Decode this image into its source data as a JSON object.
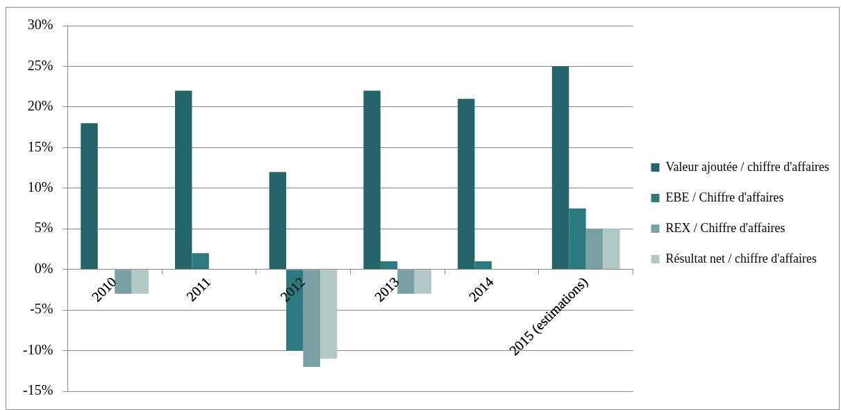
{
  "chart_data": {
    "type": "bar",
    "categories": [
      "2010",
      "2011",
      "2012",
      "2013",
      "2014",
      "2015 (estimations)"
    ],
    "series": [
      {
        "name": "Valeur ajoutée / chiffre d'affaires",
        "color": "#256468",
        "values": [
          18,
          22,
          12,
          22,
          21,
          25
        ]
      },
      {
        "name": "EBE / Chiffre d'affaires",
        "color": "#2c7a80",
        "values": [
          0,
          2,
          -10,
          1,
          1,
          7.5
        ]
      },
      {
        "name": "REX / Chiffre d'affaires",
        "color": "#79a1a3",
        "values": [
          -3,
          0,
          -12,
          -3,
          0,
          5
        ]
      },
      {
        "name": "Résultat net / chiffre d'affaires",
        "color": "#b1c7c8",
        "values": [
          -3,
          0,
          -11,
          -3,
          0,
          5
        ]
      }
    ],
    "ylim": [
      -15,
      30
    ],
    "yticks": [
      {
        "value": -15,
        "label": "-15%"
      },
      {
        "value": -10,
        "label": "-10%"
      },
      {
        "value": -5,
        "label": "-5%"
      },
      {
        "value": 0,
        "label": "0%"
      },
      {
        "value": 5,
        "label": "5%"
      },
      {
        "value": 10,
        "label": "10%"
      },
      {
        "value": 15,
        "label": "15%"
      },
      {
        "value": 20,
        "label": "20%"
      },
      {
        "value": 25,
        "label": "25%"
      },
      {
        "value": 30,
        "label": "30%"
      }
    ],
    "grid": "y",
    "legend": "right"
  }
}
